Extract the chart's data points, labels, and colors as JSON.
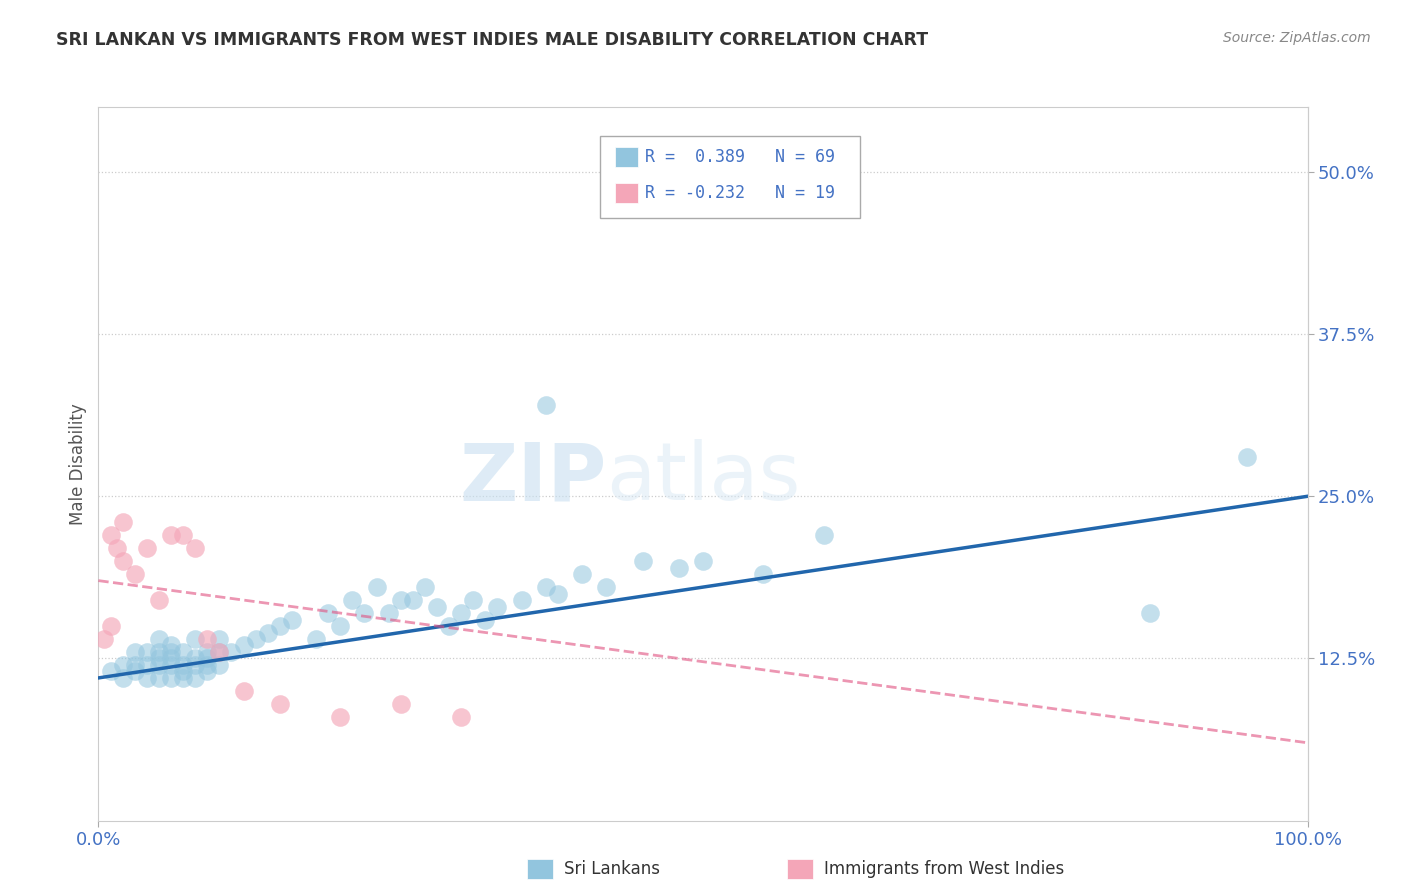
{
  "title": "SRI LANKAN VS IMMIGRANTS FROM WEST INDIES MALE DISABILITY CORRELATION CHART",
  "source": "Source: ZipAtlas.com",
  "ylabel": "Male Disability",
  "xlim": [
    0.0,
    100.0
  ],
  "ylim": [
    0.0,
    55.0
  ],
  "yticks": [
    12.5,
    25.0,
    37.5,
    50.0
  ],
  "ytick_labels": [
    "12.5%",
    "25.0%",
    "37.5%",
    "50.0%"
  ],
  "xtick_labels": [
    "0.0%",
    "100.0%"
  ],
  "blue_R": 0.389,
  "blue_N": 69,
  "pink_R": -0.232,
  "pink_N": 19,
  "blue_color": "#92c5de",
  "pink_color": "#f4a6b8",
  "blue_line_color": "#2166ac",
  "pink_line_color": "#e05080",
  "legend_label_blue": "Sri Lankans",
  "legend_label_pink": "Immigrants from West Indies",
  "watermark_zip": "ZIP",
  "watermark_atlas": "atlas",
  "blue_trend_x0": 0.0,
  "blue_trend_y0": 11.0,
  "blue_trend_x1": 100.0,
  "blue_trend_y1": 25.0,
  "pink_trend_x0": 0.0,
  "pink_trend_y0": 18.5,
  "pink_trend_x1": 100.0,
  "pink_trend_y1": 6.0,
  "blue_x": [
    1,
    2,
    2,
    3,
    3,
    3,
    4,
    4,
    4,
    5,
    5,
    5,
    5,
    5,
    6,
    6,
    6,
    6,
    6,
    7,
    7,
    7,
    7,
    8,
    8,
    8,
    8,
    9,
    9,
    9,
    9,
    10,
    10,
    10,
    11,
    12,
    13,
    14,
    15,
    16,
    18,
    19,
    20,
    21,
    22,
    23,
    24,
    25,
    26,
    27,
    28,
    29,
    30,
    31,
    32,
    33,
    35,
    37,
    38,
    40,
    42,
    45,
    48,
    50,
    55,
    60,
    87,
    95,
    37
  ],
  "blue_y": [
    11.5,
    12,
    11,
    11.5,
    12,
    13,
    11,
    12,
    13,
    11,
    12,
    12.5,
    13,
    14,
    11,
    12,
    12.5,
    13,
    13.5,
    11,
    11.5,
    12,
    13,
    11,
    12,
    12.5,
    14,
    11.5,
    12,
    12.5,
    13,
    12,
    13,
    14,
    13,
    13.5,
    14,
    14.5,
    15,
    15.5,
    14,
    16,
    15,
    17,
    16,
    18,
    16,
    17,
    17,
    18,
    16.5,
    15,
    16,
    17,
    15.5,
    16.5,
    17,
    18,
    17.5,
    19,
    18,
    20,
    19.5,
    20,
    19,
    22,
    16,
    28,
    32
  ],
  "pink_x": [
    0.5,
    1,
    1,
    1.5,
    2,
    2,
    3,
    4,
    5,
    6,
    7,
    8,
    9,
    10,
    12,
    15,
    20,
    25,
    30
  ],
  "pink_y": [
    14,
    15,
    22,
    21,
    20,
    23,
    19,
    21,
    17,
    22,
    22,
    21,
    14,
    13,
    10,
    9,
    8,
    9,
    8
  ]
}
